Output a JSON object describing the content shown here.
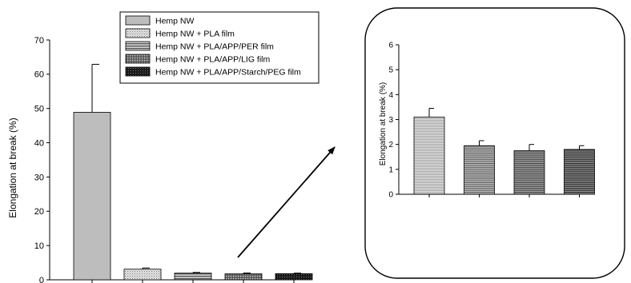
{
  "legend": {
    "entries": [
      {
        "label": "Hemp NW",
        "pattern": "solid-gray"
      },
      {
        "label": "Hemp NW + PLA film",
        "pattern": "light-dots"
      },
      {
        "label": "Hemp NW + PLA/APP/PER film",
        "pattern": "dark-hatch"
      },
      {
        "label": "Hemp NW + PLA/APP/LIG film",
        "pattern": "dark-dots"
      },
      {
        "label": "Hemp NW + PLA/APP/Starch/PEG film",
        "pattern": "black-dots"
      }
    ]
  },
  "chart_data": [
    {
      "type": "bar",
      "title": "",
      "xlabel": "",
      "ylabel": "Elongation at break (%)",
      "ylim": [
        0,
        70
      ],
      "yticks": [
        0,
        10,
        20,
        30,
        40,
        50,
        60,
        70
      ],
      "categories": [
        "Hemp NW",
        "Hemp NW + PLA film",
        "Hemp NW + PLA/APP/PER film",
        "Hemp NW + PLA/APP/LIG film",
        "Hemp NW + PLA/APP/Starch/PEG film"
      ],
      "values": [
        48.9,
        3.1,
        1.95,
        1.75,
        1.8
      ],
      "errors": [
        14.0,
        0.35,
        0.2,
        0.25,
        0.15
      ],
      "grid": false,
      "legend_position": "top-center"
    },
    {
      "type": "bar",
      "title": "",
      "xlabel": "",
      "ylabel": "Elongation at break (%)",
      "ylim": [
        0,
        6
      ],
      "yticks": [
        0,
        1,
        2,
        3,
        4,
        5,
        6
      ],
      "categories": [
        "Hemp NW + PLA film",
        "Hemp NW + PLA/APP/PER film",
        "Hemp NW + PLA/APP/LIG film",
        "Hemp NW + PLA/APP/Starch/PEG film"
      ],
      "values": [
        3.1,
        1.95,
        1.75,
        1.8
      ],
      "errors": [
        0.35,
        0.2,
        0.25,
        0.15
      ],
      "grid": false,
      "legend_position": "none"
    }
  ]
}
